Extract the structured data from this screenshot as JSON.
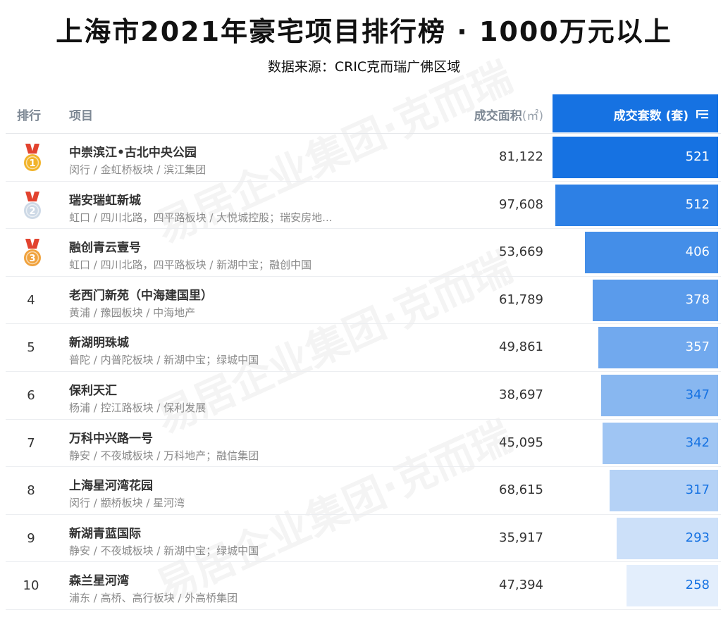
{
  "title": "上海市2021年豪宅项目排行榜 · 1000万元以上",
  "source": "数据来源：CRIC克而瑞广佛区域",
  "watermark": "易居企业集团·克而瑞",
  "headers": {
    "rank": "排行",
    "project": "项目",
    "area": "成交面积",
    "area_unit": "(㎡)",
    "count": "成交套数 (套)",
    "sort_icon": "sort-desc-icon"
  },
  "colors": {
    "header_bar": "#1672e2",
    "bar_dark": "#1672e2",
    "bar_light": "#e3eefc",
    "gold": "#f1b32a",
    "silver": "#cdd9e6",
    "bronze": "#f0a23d",
    "ribbon": "#e2432f"
  },
  "chart_data": {
    "type": "table",
    "title": "上海市2021年豪宅项目排行榜 · 1000万元以上",
    "columns": [
      "排行",
      "项目",
      "成交面积 (㎡)",
      "成交套数 (套)"
    ],
    "rows": [
      {
        "rank": "1",
        "name": "中崇滨江•古北中央公园",
        "desc": "闵行 / 金虹桥板块 / 滨江集团",
        "area": "81,122",
        "count": 521
      },
      {
        "rank": "2",
        "name": "瑞安瑞虹新城",
        "desc": "虹口 / 四川北路，四平路板块 / 大悦城控股；瑞安房地...",
        "area": "97,608",
        "count": 512
      },
      {
        "rank": "3",
        "name": "融创青云壹号",
        "desc": "虹口 / 四川北路，四平路板块 / 新湖中宝；融创中国",
        "area": "53,669",
        "count": 406
      },
      {
        "rank": "4",
        "name": "老西门新苑（中海建国里）",
        "desc": "黄浦 / 豫园板块 / 中海地产",
        "area": "61,789",
        "count": 378
      },
      {
        "rank": "5",
        "name": "新湖明珠城",
        "desc": "普陀 / 内普陀板块 / 新湖中宝；绿城中国",
        "area": "49,861",
        "count": 357
      },
      {
        "rank": "6",
        "name": "保利天汇",
        "desc": "杨浦 / 控江路板块 / 保利发展",
        "area": "38,697",
        "count": 347
      },
      {
        "rank": "7",
        "name": "万科中兴路一号",
        "desc": "静安 / 不夜城板块 / 万科地产；融信集团",
        "area": "45,095",
        "count": 342
      },
      {
        "rank": "8",
        "name": "上海星河湾花园",
        "desc": "闵行 / 颛桥板块 / 星河湾",
        "area": "68,615",
        "count": 317
      },
      {
        "rank": "9",
        "name": "新湖青蓝国际",
        "desc": "静安 / 不夜城板块 / 新湖中宝；绿城中国",
        "area": "35,917",
        "count": 293
      },
      {
        "rank": "10",
        "name": "森兰星河湾",
        "desc": "浦东 / 高桥、高行板块 / 外高桥集团",
        "area": "47,394",
        "count": 258
      }
    ]
  }
}
